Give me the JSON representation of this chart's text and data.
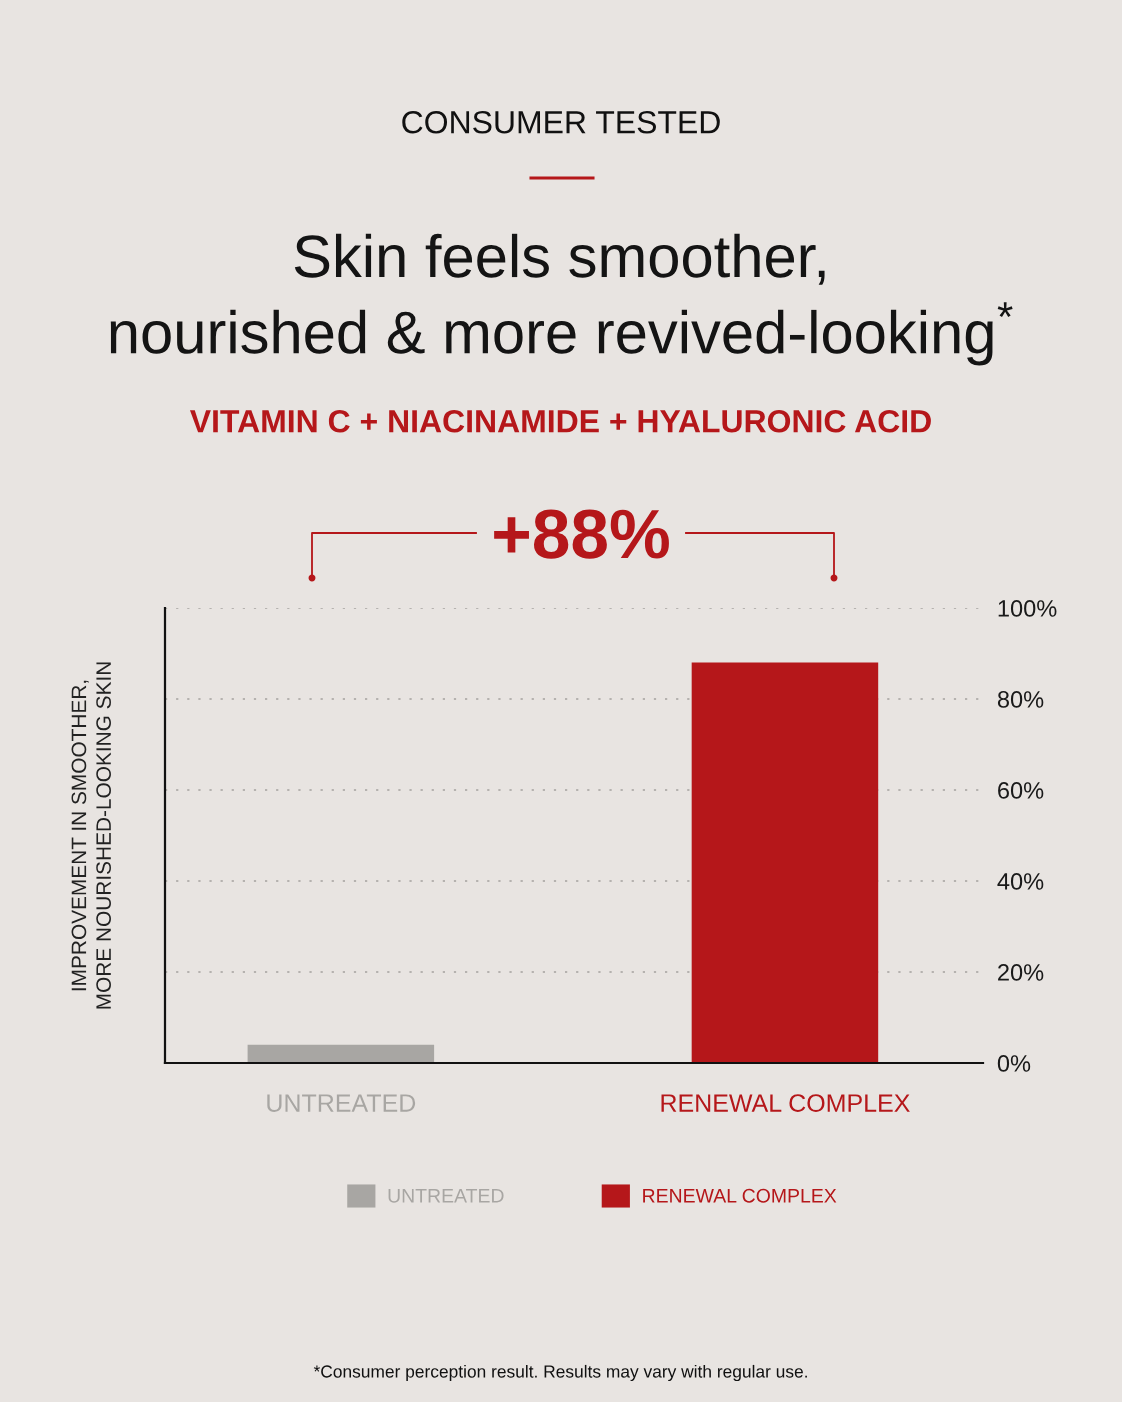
{
  "chart_data": {
    "type": "bar",
    "title": "Skin feels smoother,\nnourished & more revived-looking$^{*}$",
    "subtitle": "VITAMIN C + NIACINAMIDE + HYALURONIC ACID",
    "ylabel": "IMPROVEMENT IN SMOOTHER,\nMORE NOURISHED-LOOKING SKIN",
    "categories": [
      "UNTREATED",
      "RENEWAL COMPLEX"
    ],
    "series": [
      {
        "name": "UNTREATED",
        "color": "#a8a6a3",
        "values": [
          4,
          null
        ]
      },
      {
        "name": "RENEWAL COMPLEX",
        "color": "#b5171a",
        "values": [
          null,
          88
        ]
      }
    ],
    "ylim": [
      0,
      100
    ],
    "yticks": [
      {
        "value": 0,
        "label": "0%"
      },
      {
        "value": 20,
        "label": "20%"
      },
      {
        "value": 40,
        "label": "40%"
      },
      {
        "value": 60,
        "label": "60%"
      },
      {
        "value": 80,
        "label": "80%"
      },
      {
        "value": 100,
        "label": "100%"
      }
    ],
    "grid": "y",
    "legend": "bottom",
    "annotations": [
      "CONSUMER TESTED",
      "+88%",
      "*Consumer perception result. Results may vary with regular use."
    ]
  }
}
